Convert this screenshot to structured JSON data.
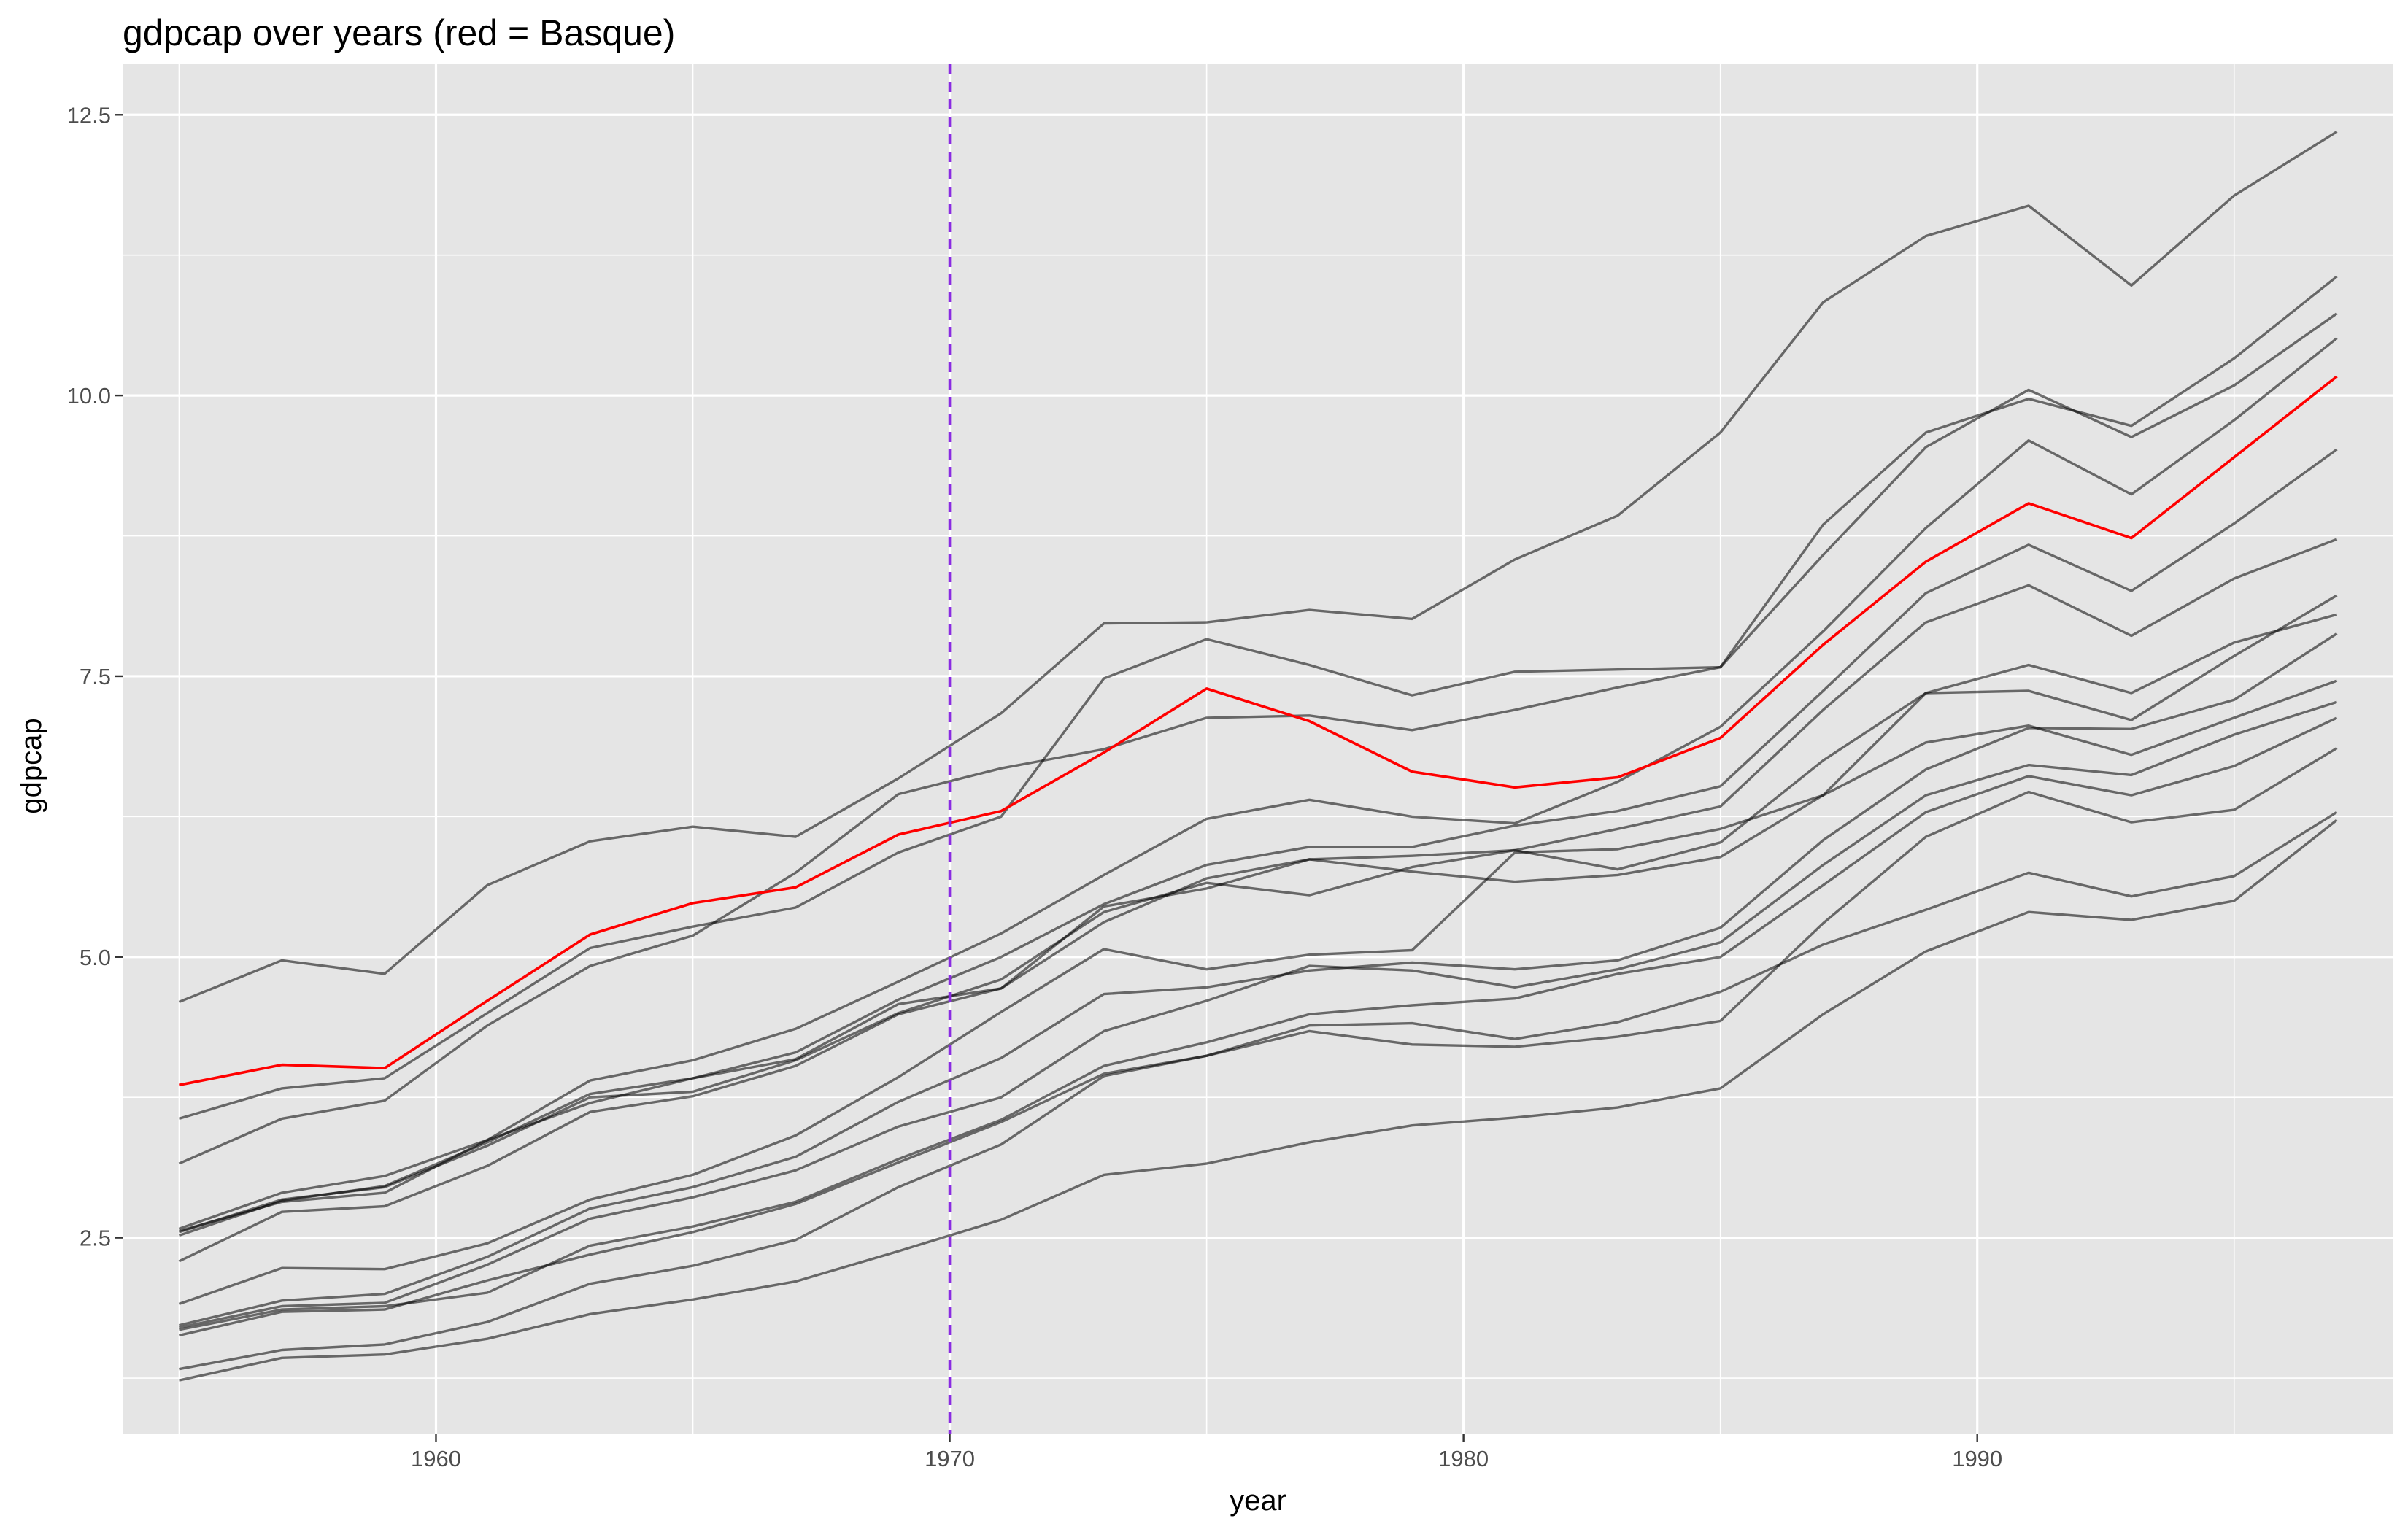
{
  "chart_data": {
    "type": "line",
    "title": "gdpcap over years (red = Basque)",
    "xlabel": "year",
    "ylabel": "gdpcap",
    "xlim": [
      1953.9,
      1998.1
    ],
    "ylim": [
      0.75,
      12.95
    ],
    "x_ticks": [
      {
        "value": 1960,
        "label": "1960"
      },
      {
        "value": 1970,
        "label": "1970"
      },
      {
        "value": 1980,
        "label": "1980"
      },
      {
        "value": 1990,
        "label": "1990"
      }
    ],
    "y_ticks": [
      {
        "value": 2.5,
        "label": "2.5"
      },
      {
        "value": 5.0,
        "label": "5.0"
      },
      {
        "value": 7.5,
        "label": "7.5"
      },
      {
        "value": 10.0,
        "label": "10.0"
      },
      {
        "value": 12.5,
        "label": "12.5"
      }
    ],
    "x_minor": [
      1955,
      1965,
      1975,
      1985,
      1995
    ],
    "y_minor": [
      1.25,
      3.75,
      6.25,
      8.75,
      11.25
    ],
    "grid": true,
    "vline": {
      "x": 1970,
      "color": "#8a2be2",
      "style": "dashed"
    },
    "colors": {
      "panel": "#e5e5e5",
      "grid": "#ffffff",
      "region": "#000000",
      "highlight": "#ff0000"
    },
    "x": [
      1955,
      1957,
      1959,
      1961,
      1963,
      1965,
      1967,
      1969,
      1971,
      1973,
      1975,
      1977,
      1979,
      1981,
      1983,
      1985,
      1987,
      1989,
      1991,
      1993,
      1995,
      1997
    ],
    "series": [
      {
        "highlight": false,
        "values": [
          4.6,
          4.97,
          4.85,
          5.64,
          6.03,
          6.16,
          6.07,
          6.59,
          7.17,
          7.97,
          7.98,
          8.09,
          8.01,
          8.54,
          8.93,
          9.67,
          10.83,
          11.42,
          11.69,
          10.98,
          11.78,
          12.35
        ]
      },
      {
        "highlight": false,
        "values": [
          3.56,
          3.83,
          3.92,
          4.5,
          5.08,
          5.27,
          5.44,
          5.93,
          6.25,
          7.48,
          7.83,
          7.6,
          7.33,
          7.54,
          7.56,
          7.58,
          8.85,
          9.67,
          9.97,
          9.73,
          10.33,
          11.06
        ]
      },
      {
        "highlight": false,
        "values": [
          3.16,
          3.56,
          3.72,
          4.39,
          4.92,
          5.19,
          5.75,
          6.45,
          6.68,
          6.85,
          7.13,
          7.15,
          7.02,
          7.2,
          7.4,
          7.58,
          8.58,
          9.54,
          10.05,
          9.63,
          10.09,
          10.73
        ]
      },
      {
        "highlight": true,
        "values": [
          3.86,
          4.04,
          4.01,
          4.61,
          5.2,
          5.48,
          5.62,
          6.09,
          6.3,
          6.82,
          7.39,
          7.1,
          6.65,
          6.51,
          6.6,
          6.95,
          7.78,
          8.52,
          9.04,
          8.73,
          9.45,
          10.17
        ]
      },
      {
        "highlight": false,
        "values": [
          2.58,
          2.9,
          3.05,
          3.37,
          3.9,
          4.08,
          4.36,
          4.78,
          5.21,
          5.73,
          6.23,
          6.4,
          6.25,
          6.19,
          6.56,
          7.05,
          7.9,
          8.82,
          9.6,
          9.12,
          9.78,
          10.51
        ]
      },
      {
        "highlight": false,
        "values": [
          2.52,
          2.83,
          2.96,
          3.35,
          3.78,
          3.92,
          4.15,
          4.62,
          5.0,
          5.47,
          5.82,
          5.98,
          5.98,
          6.17,
          6.3,
          6.52,
          7.37,
          8.24,
          8.67,
          8.26,
          8.86,
          9.52
        ]
      },
      {
        "highlight": false,
        "values": [
          2.56,
          2.82,
          2.9,
          3.37,
          3.7,
          3.92,
          4.09,
          4.58,
          4.72,
          5.45,
          5.61,
          5.87,
          5.9,
          5.95,
          5.78,
          6.02,
          6.75,
          7.35,
          7.37,
          7.11,
          7.68,
          8.22
        ]
      },
      {
        "highlight": false,
        "values": [
          2.55,
          2.84,
          2.95,
          3.32,
          3.75,
          3.8,
          4.08,
          4.5,
          4.8,
          5.4,
          5.66,
          5.55,
          5.8,
          5.95,
          6.14,
          6.34,
          7.2,
          7.98,
          8.31,
          7.86,
          8.37,
          8.72
        ]
      },
      {
        "highlight": false,
        "values": [
          2.29,
          2.73,
          2.78,
          3.14,
          3.62,
          3.76,
          4.03,
          4.49,
          4.72,
          5.31,
          5.7,
          5.87,
          5.76,
          5.67,
          5.73,
          5.89,
          6.44,
          7.35,
          7.6,
          7.35,
          7.8,
          8.05
        ]
      },
      {
        "highlight": false,
        "values": [
          1.91,
          2.23,
          2.22,
          2.45,
          2.84,
          3.06,
          3.41,
          3.93,
          4.51,
          5.07,
          4.89,
          5.02,
          5.06,
          5.93,
          5.96,
          6.14,
          6.44,
          6.91,
          7.06,
          6.8,
          7.13,
          7.46
        ]
      },
      {
        "highlight": false,
        "values": [
          1.72,
          1.94,
          2.0,
          2.33,
          2.76,
          2.95,
          3.22,
          3.71,
          4.1,
          4.67,
          4.73,
          4.88,
          4.95,
          4.89,
          4.97,
          5.26,
          6.04,
          6.67,
          7.04,
          7.03,
          7.29,
          7.88
        ]
      },
      {
        "highlight": false,
        "values": [
          1.7,
          1.89,
          1.92,
          2.26,
          2.67,
          2.86,
          3.1,
          3.49,
          3.75,
          4.34,
          4.61,
          4.92,
          4.88,
          4.73,
          4.89,
          5.13,
          5.82,
          6.44,
          6.71,
          6.62,
          6.98,
          7.27
        ]
      },
      {
        "highlight": false,
        "values": [
          1.68,
          1.86,
          1.89,
          2.01,
          2.43,
          2.6,
          2.82,
          3.2,
          3.55,
          4.03,
          4.24,
          4.49,
          4.57,
          4.63,
          4.85,
          5.0,
          5.64,
          6.29,
          6.61,
          6.44,
          6.7,
          7.13
        ]
      },
      {
        "highlight": false,
        "values": [
          1.63,
          1.84,
          1.86,
          2.12,
          2.35,
          2.55,
          2.8,
          3.17,
          3.53,
          3.96,
          4.12,
          4.34,
          4.22,
          4.2,
          4.29,
          4.43,
          5.3,
          6.07,
          6.47,
          6.2,
          6.31,
          6.86
        ]
      },
      {
        "highlight": false,
        "values": [
          1.33,
          1.5,
          1.55,
          1.75,
          2.09,
          2.25,
          2.48,
          2.95,
          3.33,
          3.94,
          4.12,
          4.39,
          4.41,
          4.27,
          4.42,
          4.69,
          5.11,
          5.42,
          5.75,
          5.54,
          5.72,
          6.29
        ]
      },
      {
        "highlight": false,
        "values": [
          1.23,
          1.43,
          1.46,
          1.6,
          1.82,
          1.95,
          2.11,
          2.38,
          2.66,
          3.06,
          3.16,
          3.35,
          3.5,
          3.57,
          3.66,
          3.83,
          4.49,
          5.05,
          5.4,
          5.33,
          5.5,
          6.22
        ]
      }
    ]
  }
}
